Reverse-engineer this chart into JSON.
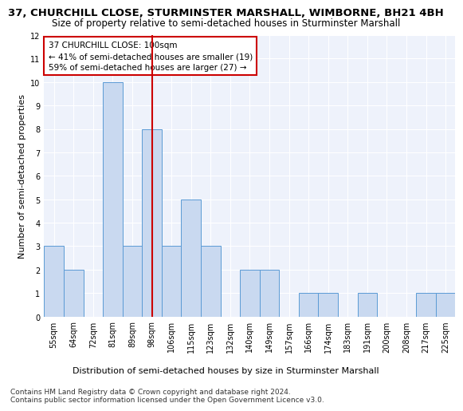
{
  "title": "37, CHURCHILL CLOSE, STURMINSTER MARSHALL, WIMBORNE, BH21 4BH",
  "subtitle": "Size of property relative to semi-detached houses in Sturminster Marshall",
  "xlabel_bottom": "Distribution of semi-detached houses by size in Sturminster Marshall",
  "ylabel": "Number of semi-detached properties",
  "categories": [
    "55sqm",
    "64sqm",
    "72sqm",
    "81sqm",
    "89sqm",
    "98sqm",
    "106sqm",
    "115sqm",
    "123sqm",
    "132sqm",
    "140sqm",
    "149sqm",
    "157sqm",
    "166sqm",
    "174sqm",
    "183sqm",
    "191sqm",
    "200sqm",
    "208sqm",
    "217sqm",
    "225sqm"
  ],
  "values": [
    3,
    2,
    0,
    10,
    3,
    8,
    3,
    5,
    3,
    0,
    2,
    2,
    0,
    1,
    1,
    0,
    1,
    0,
    0,
    1,
    1
  ],
  "bar_color": "#c9d9f0",
  "bar_edge_color": "#5b9bd5",
  "red_line_x": 5.0,
  "red_line_color": "#cc0000",
  "annotation_line1": "37 CHURCHILL CLOSE: 100sqm",
  "annotation_line2": "← 41% of semi-detached houses are smaller (19)",
  "annotation_line3": "59% of semi-detached houses are larger (27) →",
  "annotation_box_color": "#ffffff",
  "annotation_box_edge": "#cc0000",
  "ylim": [
    0,
    12
  ],
  "yticks": [
    0,
    1,
    2,
    3,
    4,
    5,
    6,
    7,
    8,
    9,
    10,
    11,
    12
  ],
  "bg_color": "#eef2fb",
  "grid_color": "#ffffff",
  "footnote": "Contains HM Land Registry data © Crown copyright and database right 2024.\nContains public sector information licensed under the Open Government Licence v3.0.",
  "title_fontsize": 9.5,
  "subtitle_fontsize": 8.5,
  "axis_label_fontsize": 8,
  "tick_fontsize": 7,
  "annotation_fontsize": 7.5,
  "footnote_fontsize": 6.5
}
